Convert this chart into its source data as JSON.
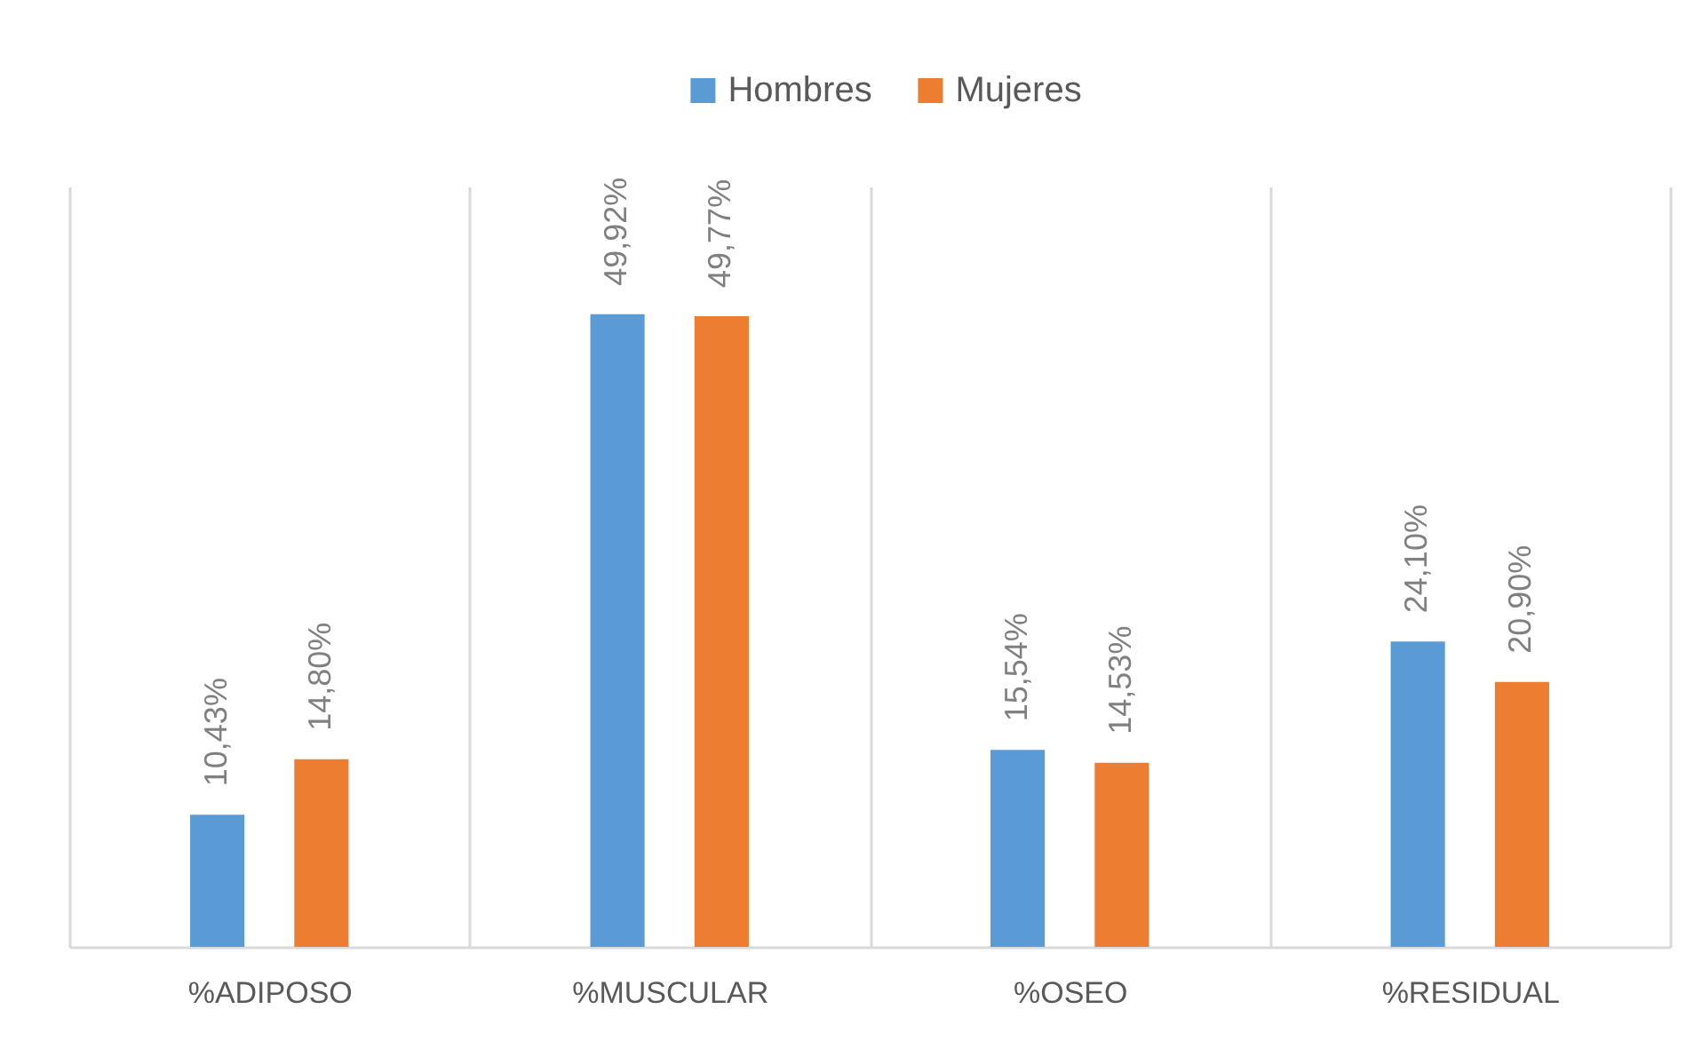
{
  "chart_data": {
    "type": "bar",
    "categories": [
      "%ADIPOSO",
      "%MUSCULAR",
      "%OSEO",
      "%RESIDUAL"
    ],
    "series": [
      {
        "name": "Hombres",
        "color": "#5b9bd5",
        "values": [
          10.43,
          49.92,
          15.54,
          24.1
        ],
        "value_labels": [
          "10,43%",
          "49,92%",
          "15,54%",
          "24,10%"
        ]
      },
      {
        "name": "Mujeres",
        "color": "#ed7d31",
        "values": [
          14.8,
          49.77,
          14.53,
          20.9
        ],
        "value_labels": [
          "14,80%",
          "49,77%",
          "14,53%",
          "20,90%"
        ]
      }
    ],
    "ylim": [
      0,
      60
    ],
    "grid": "x",
    "legend": "top",
    "tick_labels": "x"
  }
}
